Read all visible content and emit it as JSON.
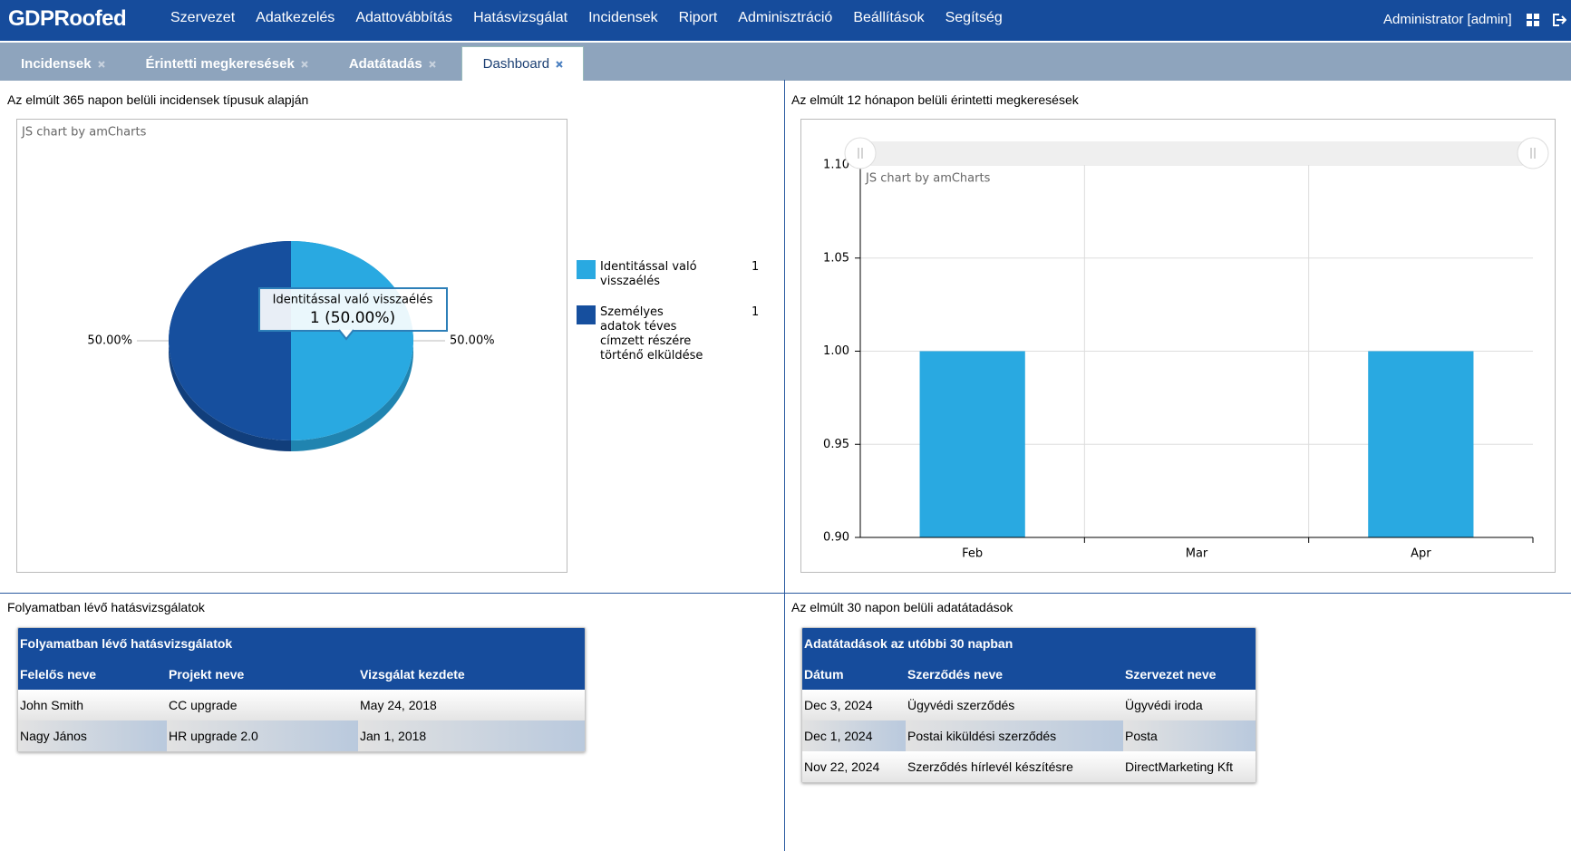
{
  "header": {
    "logo": "GDPRoofed",
    "nav": [
      "Szervezet",
      "Adatkezelés",
      "Adattovábbítás",
      "Hatásvizsgálat",
      "Incidensek",
      "Riport",
      "Adminisztráció",
      "Beállítások",
      "Segítség"
    ],
    "user": "Administrator [admin]"
  },
  "tabs": {
    "items": [
      "Incidensek",
      "Érintetti megkeresések",
      "Adatátadás",
      "Dashboard"
    ],
    "active": 3
  },
  "panels": [
    {
      "title": "Az elmúlt 365 napon belüli incidensek típusuk alapján"
    },
    {
      "title": "Az elmúlt 12 hónapon belüli érintetti megkeresések"
    },
    {
      "title": "Folyamatban lévő hatásvizsgálatok"
    },
    {
      "title": "Az elmúlt 30 napon belüli adatátadások"
    }
  ],
  "chart_data": [
    {
      "type": "pie",
      "watermark": "JS chart by amCharts",
      "categories": [
        "Identitással való visszaélés",
        "Személyes adatok téves címzett részére történő elküldése"
      ],
      "values": [
        50,
        50
      ],
      "value_labels": [
        "50.00%",
        "50.00%"
      ],
      "counts": [
        1,
        1
      ],
      "colors": [
        "#29a9e1",
        "#164f9e"
      ],
      "tooltip": {
        "title": "Identitással való visszaélés",
        "label": "1 (50.00%)"
      }
    },
    {
      "type": "bar",
      "watermark": "JS chart by amCharts",
      "categories": [
        "Feb",
        "Mar",
        "Apr"
      ],
      "values": [
        1,
        null,
        1
      ],
      "color": "#29a9e1",
      "ylim": [
        0.9,
        1.1
      ],
      "yticks": [
        {
          "value": 0.9,
          "label": "0.90"
        },
        {
          "value": 0.95,
          "label": "0.95"
        },
        {
          "value": 1,
          "label": "1.00"
        },
        {
          "value": 1.05,
          "label": "1.05"
        },
        {
          "value": 1.1,
          "label": "1.10"
        }
      ],
      "grid": true
    }
  ],
  "tables": [
    {
      "title": "Folyamatban lévő hatásvizsgálatok",
      "columns": [
        "Felelős neve",
        "Projekt neve",
        "Vizsgálat kezdete"
      ],
      "rows": [
        [
          "John Smith",
          "CC upgrade",
          "May 24, 2018"
        ],
        [
          "Nagy János",
          "HR upgrade 2.0",
          "Jan 1, 2018"
        ]
      ]
    },
    {
      "title": "Adatátadások az utóbbi 30 napban",
      "columns": [
        "Dátum",
        "Szerződés neve",
        "Szervezet neve"
      ],
      "rows": [
        [
          "Dec 3, 2024",
          "Ügyvédi szerződés",
          "Ügyvédi iroda"
        ],
        [
          "Dec 1, 2024",
          "Postai kiküldési szerződés",
          "Posta"
        ],
        [
          "Nov 22, 2024",
          "Szerződés hírlevél készítésre",
          "DirectMarketing Kft"
        ]
      ]
    }
  ]
}
